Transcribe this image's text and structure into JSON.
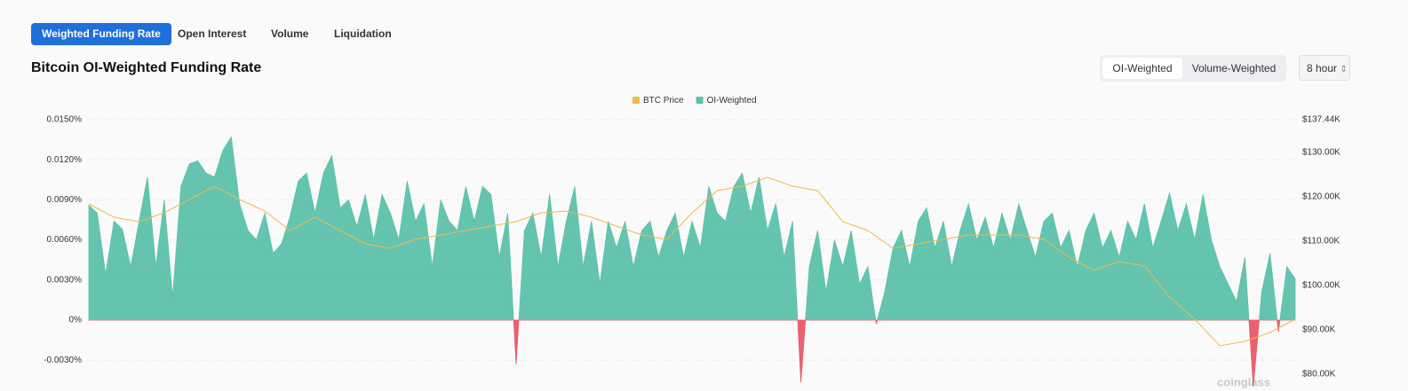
{
  "tabs": [
    "Weighted Funding Rate",
    "Open Interest",
    "Volume",
    "Liquidation"
  ],
  "weighting_options": [
    "OI-Weighted",
    "Volume-Weighted"
  ],
  "interval": "8 hour",
  "watermark": "coinglass",
  "chart_data": {
    "type": "area",
    "title": "Bitcoin OI-Weighted Funding Rate",
    "series": [
      {
        "name": "BTC Price",
        "color": "#f0b94a",
        "axis": "y2",
        "values": [
          118400,
          115400,
          114400,
          116400,
          119400,
          122400,
          119400,
          116800,
          112400,
          115400,
          112400,
          109400,
          108400,
          110400,
          111400,
          112400,
          113400,
          114400,
          116400,
          116800,
          115400,
          113400,
          111400,
          110400,
          116400,
          121400,
          122400,
          124400,
          122400,
          121400,
          114400,
          112400,
          108400,
          109400,
          110400,
          111400,
          111400,
          111400,
          110400,
          106400,
          103400,
          105400,
          104400,
          97400,
          92400,
          86400,
          87400,
          89400,
          92400
        ]
      },
      {
        "name": "OI-Weighted",
        "color": "#5cc1ab",
        "values": [
          0.0086,
          0.008,
          0.0034,
          0.0074,
          0.0068,
          0.004,
          0.0074,
          0.0107,
          0.004,
          0.009,
          0.0017,
          0.01,
          0.0117,
          0.0119,
          0.011,
          0.0107,
          0.0127,
          0.0137,
          0.0087,
          0.0067,
          0.006,
          0.008,
          0.005,
          0.0057,
          0.0077,
          0.0104,
          0.011,
          0.008,
          0.011,
          0.0123,
          0.0084,
          0.009,
          0.007,
          0.0094,
          0.006,
          0.0094,
          0.008,
          0.006,
          0.0104,
          0.0074,
          0.0087,
          0.004,
          0.009,
          0.0074,
          0.0067,
          0.01,
          0.0074,
          0.01,
          0.0094,
          0.0047,
          0.008,
          -0.0033,
          0.0067,
          0.008,
          0.0047,
          0.0094,
          0.004,
          0.0074,
          0.01,
          0.004,
          0.0074,
          0.0027,
          0.0074,
          0.0054,
          0.0074,
          0.004,
          0.0067,
          0.0074,
          0.0047,
          0.0067,
          0.008,
          0.0047,
          0.0074,
          0.0054,
          0.01,
          0.008,
          0.0074,
          0.01,
          0.011,
          0.008,
          0.0107,
          0.0067,
          0.0087,
          0.0047,
          0.0074,
          -0.0047,
          0.004,
          0.0067,
          0.0021,
          0.006,
          0.004,
          0.0067,
          0.0027,
          0.004,
          -0.0003,
          0.0021,
          0.0054,
          0.0067,
          0.004,
          0.0074,
          0.0084,
          0.0054,
          0.0074,
          0.004,
          0.0067,
          0.0087,
          0.006,
          0.0077,
          0.0054,
          0.008,
          0.006,
          0.0087,
          0.0067,
          0.0047,
          0.0074,
          0.008,
          0.0054,
          0.0067,
          0.004,
          0.0067,
          0.008,
          0.0054,
          0.0067,
          0.0047,
          0.0074,
          0.006,
          0.0087,
          0.0054,
          0.0074,
          0.0095,
          0.0067,
          0.0087,
          0.006,
          0.0094,
          0.006,
          0.004,
          0.0027,
          0.0014,
          0.0047,
          -0.005,
          0.0021,
          0.005,
          -0.0009,
          0.004,
          0.0031
        ]
      }
    ],
    "negative_color": "#e8596a",
    "ylim": [
      -0.005,
      0.0157
    ],
    "yticks": [
      {
        "value": 0.015,
        "label": "0.0150%"
      },
      {
        "value": 0.012,
        "label": "0.0120%"
      },
      {
        "value": 0.009,
        "label": "0.0090%"
      },
      {
        "value": 0.006,
        "label": "0.0060%"
      },
      {
        "value": 0.003,
        "label": "0.0030%"
      },
      {
        "value": 0,
        "label": "0%"
      },
      {
        "value": -0.003,
        "label": "-0.0030%"
      }
    ],
    "y2lim": [
      77140,
      139520
    ],
    "y2ticks": [
      {
        "value": 137440,
        "label": "$137.44K"
      },
      {
        "value": 130000,
        "label": "$130.00K"
      },
      {
        "value": 120000,
        "label": "$120.00K"
      },
      {
        "value": 110000,
        "label": "$110.00K"
      },
      {
        "value": 100000,
        "label": "$100.00K"
      },
      {
        "value": 90000,
        "label": "$90.00K"
      },
      {
        "value": 80000,
        "label": "$80.00K"
      }
    ],
    "grid": true
  }
}
